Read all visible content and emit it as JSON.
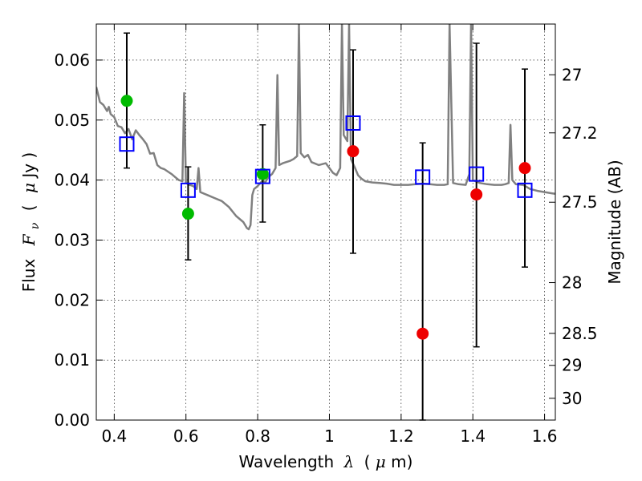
{
  "chart_data": {
    "type": "scatter",
    "title": "",
    "xlabel": "Wavelength",
    "xlabel_symbol": "λ",
    "xlabel_unit_open": "(",
    "xlabel_unit_mu": "μ",
    "xlabel_unit_rest": "m)",
    "ylabel": "Flux",
    "ylabel_symbol": "F",
    "ylabel_subscript": "ν",
    "ylabel_unit_open": "(",
    "ylabel_unit_mu": "μ",
    "ylabel_unit_rest": "Jy )",
    "y2label": "Magnitude (AB)",
    "xlim": [
      0.35,
      1.63
    ],
    "ylim": [
      0.0,
      0.066
    ],
    "grid": true,
    "x_ticks": [
      {
        "value": 0.4,
        "label": "0.4"
      },
      {
        "value": 0.6,
        "label": "0.6"
      },
      {
        "value": 0.8,
        "label": "0.8"
      },
      {
        "value": 1.0,
        "label": "1"
      },
      {
        "value": 1.2,
        "label": "1.2"
      },
      {
        "value": 1.4,
        "label": "1.4"
      },
      {
        "value": 1.6,
        "label": "1.6"
      }
    ],
    "y_ticks": [
      {
        "value": 0.0,
        "label": "0.00"
      },
      {
        "value": 0.01,
        "label": "0.01"
      },
      {
        "value": 0.02,
        "label": "0.02"
      },
      {
        "value": 0.03,
        "label": "0.03"
      },
      {
        "value": 0.04,
        "label": "0.04"
      },
      {
        "value": 0.05,
        "label": "0.05"
      },
      {
        "value": 0.06,
        "label": "0.06"
      }
    ],
    "y2_ticks": [
      {
        "value": 27.0,
        "label": "27"
      },
      {
        "value": 27.2,
        "label": "27.2"
      },
      {
        "value": 27.5,
        "label": "27.5"
      },
      {
        "value": 28.0,
        "label": "28"
      },
      {
        "value": 28.5,
        "label": "28.5"
      },
      {
        "value": 29.0,
        "label": "29"
      },
      {
        "value": 30.0,
        "label": "30"
      }
    ],
    "series": [
      {
        "kind": "observed_flux",
        "color": "#0000ff",
        "marker": "open-square",
        "points": [
          {
            "x": 0.435,
            "y": 0.046,
            "yerr_low": 0.042,
            "yerr_high": 0.0645
          },
          {
            "x": 0.606,
            "y": 0.0383,
            "yerr_low": 0.0267,
            "yerr_high": 0.0422
          },
          {
            "x": 0.814,
            "y": 0.0406,
            "yerr_low": 0.033,
            "yerr_high": 0.0492
          },
          {
            "x": 1.066,
            "y": 0.0495,
            "yerr_low": 0.0278,
            "yerr_high": 0.0617
          },
          {
            "x": 1.26,
            "y": 0.0405,
            "yerr_low": 0.0,
            "yerr_high": 0.0462
          },
          {
            "x": 1.41,
            "y": 0.041,
            "yerr_low": 0.0122,
            "yerr_high": 0.0628
          },
          {
            "x": 1.545,
            "y": 0.0383,
            "yerr_low": 0.0255,
            "yerr_high": 0.0585
          }
        ]
      },
      {
        "kind": "model_flux_green",
        "color": "#00bb00",
        "marker": "filled-circle",
        "points": [
          {
            "x": 0.435,
            "y": 0.0532
          },
          {
            "x": 0.606,
            "y": 0.0344
          },
          {
            "x": 0.814,
            "y": 0.041
          }
        ]
      },
      {
        "kind": "model_flux_red",
        "color": "#ee0000",
        "marker": "filled-circle",
        "points": [
          {
            "x": 1.066,
            "y": 0.0448
          },
          {
            "x": 1.26,
            "y": 0.0144
          },
          {
            "x": 1.41,
            "y": 0.0376
          },
          {
            "x": 1.545,
            "y": 0.042
          }
        ]
      },
      {
        "kind": "template_spectrum",
        "color": "#808080",
        "marker": "line",
        "points": [
          [
            0.35,
            0.0555
          ],
          [
            0.36,
            0.053
          ],
          [
            0.37,
            0.0525
          ],
          [
            0.38,
            0.0515
          ],
          [
            0.385,
            0.0522
          ],
          [
            0.39,
            0.051
          ],
          [
            0.4,
            0.0505
          ],
          [
            0.41,
            0.049
          ],
          [
            0.42,
            0.0488
          ],
          [
            0.43,
            0.0478
          ],
          [
            0.44,
            0.0485
          ],
          [
            0.45,
            0.0468
          ],
          [
            0.46,
            0.0483
          ],
          [
            0.47,
            0.0475
          ],
          [
            0.48,
            0.0468
          ],
          [
            0.49,
            0.046
          ],
          [
            0.5,
            0.0444
          ],
          [
            0.51,
            0.0445
          ],
          [
            0.52,
            0.0425
          ],
          [
            0.53,
            0.042
          ],
          [
            0.54,
            0.0418
          ],
          [
            0.56,
            0.041
          ],
          [
            0.57,
            0.0405
          ],
          [
            0.58,
            0.04
          ],
          [
            0.59,
            0.0398
          ],
          [
            0.595,
            0.0545
          ],
          [
            0.6,
            0.0395
          ],
          [
            0.61,
            0.0392
          ],
          [
            0.62,
            0.039
          ],
          [
            0.63,
            0.0385
          ],
          [
            0.635,
            0.042
          ],
          [
            0.64,
            0.038
          ],
          [
            0.66,
            0.0375
          ],
          [
            0.68,
            0.037
          ],
          [
            0.7,
            0.0365
          ],
          [
            0.72,
            0.0355
          ],
          [
            0.74,
            0.034
          ],
          [
            0.76,
            0.033
          ],
          [
            0.77,
            0.032
          ],
          [
            0.775,
            0.0318
          ],
          [
            0.78,
            0.0325
          ],
          [
            0.785,
            0.0375
          ],
          [
            0.79,
            0.0385
          ],
          [
            0.8,
            0.039
          ],
          [
            0.815,
            0.04
          ],
          [
            0.82,
            0.0395
          ],
          [
            0.83,
            0.0405
          ],
          [
            0.84,
            0.041
          ],
          [
            0.85,
            0.042
          ],
          [
            0.855,
            0.0575
          ],
          [
            0.86,
            0.0425
          ],
          [
            0.87,
            0.0428
          ],
          [
            0.89,
            0.0432
          ],
          [
            0.9,
            0.0435
          ],
          [
            0.91,
            0.044
          ],
          [
            0.915,
            0.066
          ],
          [
            0.92,
            0.0445
          ],
          [
            0.93,
            0.0438
          ],
          [
            0.94,
            0.0442
          ],
          [
            0.95,
            0.043
          ],
          [
            0.97,
            0.0425
          ],
          [
            0.99,
            0.0428
          ],
          [
            1.0,
            0.042
          ],
          [
            1.01,
            0.0412
          ],
          [
            1.02,
            0.0408
          ],
          [
            1.03,
            0.042
          ],
          [
            1.035,
            0.066
          ],
          [
            1.04,
            0.0475
          ],
          [
            1.05,
            0.0465
          ],
          [
            1.055,
            0.066
          ],
          [
            1.06,
            0.0435
          ],
          [
            1.07,
            0.0422
          ],
          [
            1.08,
            0.0408
          ],
          [
            1.09,
            0.0402
          ],
          [
            1.1,
            0.0398
          ],
          [
            1.12,
            0.0396
          ],
          [
            1.14,
            0.0395
          ],
          [
            1.16,
            0.0394
          ],
          [
            1.18,
            0.0392
          ],
          [
            1.2,
            0.0392
          ],
          [
            1.22,
            0.0392
          ],
          [
            1.24,
            0.0393
          ],
          [
            1.26,
            0.0394
          ],
          [
            1.28,
            0.0393
          ],
          [
            1.3,
            0.0392
          ],
          [
            1.32,
            0.0392
          ],
          [
            1.33,
            0.0393
          ],
          [
            1.335,
            0.066
          ],
          [
            1.345,
            0.0395
          ],
          [
            1.36,
            0.0393
          ],
          [
            1.38,
            0.0392
          ],
          [
            1.39,
            0.041
          ],
          [
            1.395,
            0.066
          ],
          [
            1.4,
            0.04
          ],
          [
            1.42,
            0.0395
          ],
          [
            1.44,
            0.0393
          ],
          [
            1.46,
            0.0392
          ],
          [
            1.48,
            0.0392
          ],
          [
            1.49,
            0.0393
          ],
          [
            1.5,
            0.0395
          ],
          [
            1.505,
            0.0492
          ],
          [
            1.51,
            0.04
          ],
          [
            1.52,
            0.0393
          ],
          [
            1.54,
            0.0392
          ],
          [
            1.56,
            0.0385
          ],
          [
            1.58,
            0.0382
          ],
          [
            1.6,
            0.038
          ],
          [
            1.62,
            0.0378
          ],
          [
            1.63,
            0.0377
          ]
        ]
      }
    ]
  }
}
